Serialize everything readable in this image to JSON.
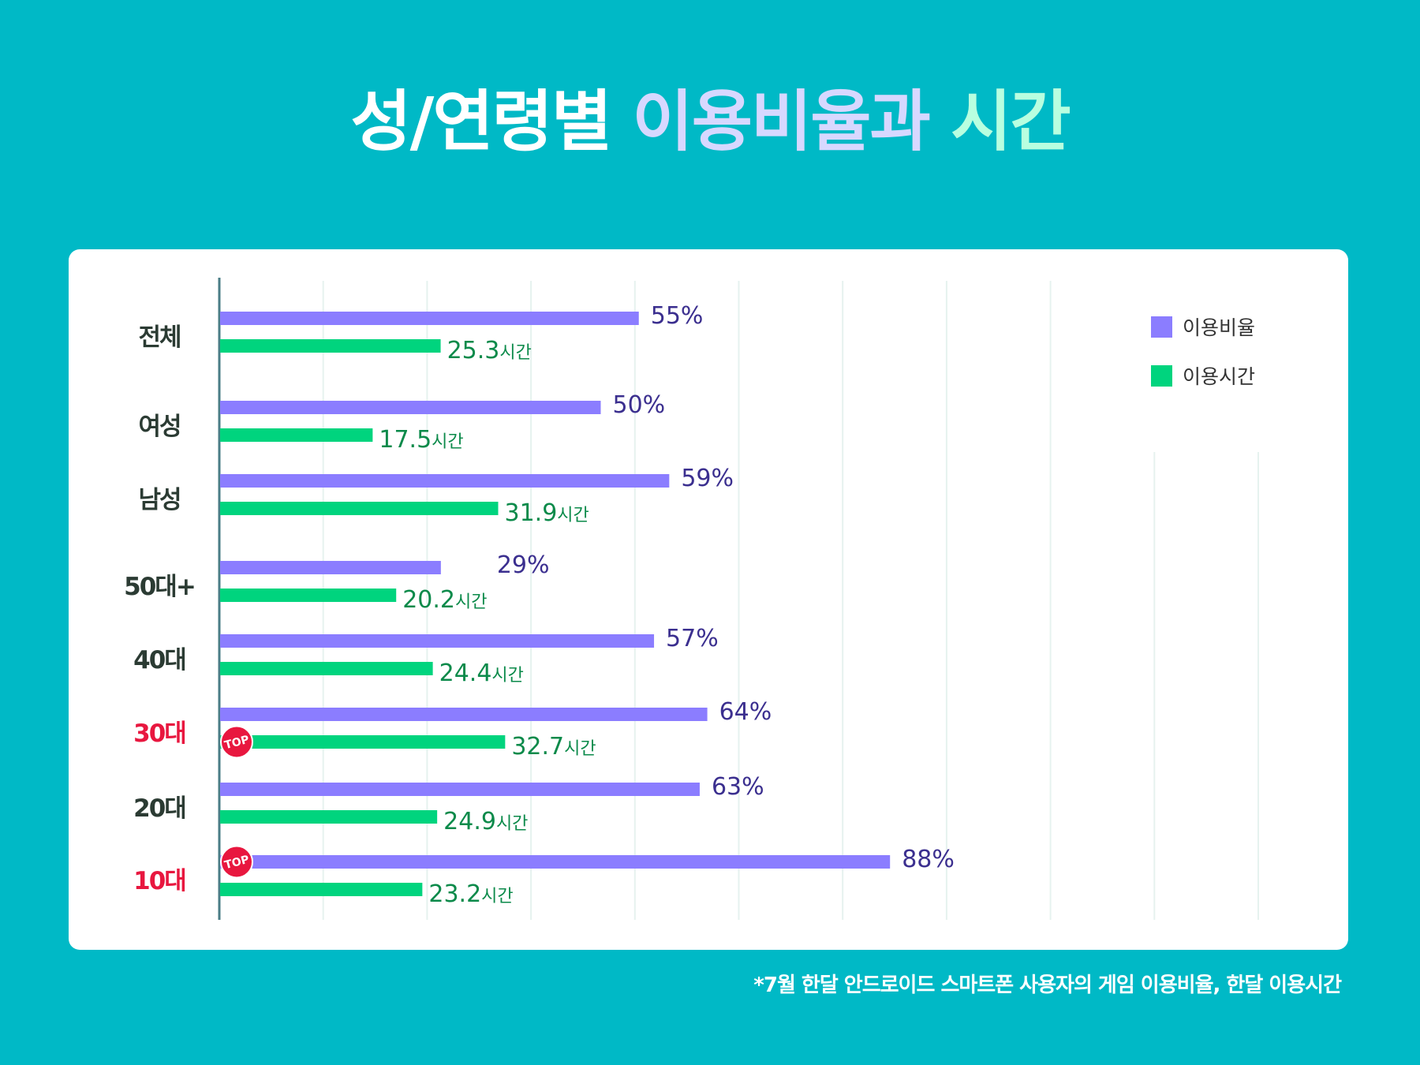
{
  "title": {
    "prefix": "성/연령별",
    "ratio_word": "이용비율과",
    "time_word": "시간"
  },
  "footnote": "*7월 한달 안드로이드 스마트폰 사용자의 게임 이용비율, 한달 이용시간",
  "colors": {
    "background": "#00b9c6",
    "ratio_bar": "#8b7dff",
    "time_bar": "#00d47e",
    "highlight_label": "#e8173f",
    "normal_label": "#2b3b33",
    "badge": "#e8173f"
  },
  "chart_data": {
    "type": "bar",
    "orientation": "horizontal",
    "title": "성/연령별 이용비율과 시간",
    "categories": [
      "전체",
      "여성",
      "남성",
      "50대+",
      "40대",
      "30대",
      "20대",
      "10대"
    ],
    "series": [
      {
        "name": "이용비율",
        "values": [
          55,
          50,
          59,
          29,
          57,
          64,
          63,
          88
        ],
        "labels": [
          "55%",
          "50%",
          "59%",
          "29%",
          "57%",
          "64%",
          "63%",
          "88%"
        ]
      },
      {
        "name": "이용시간",
        "values": [
          25.3,
          17.5,
          31.9,
          20.2,
          24.4,
          32.7,
          24.9,
          23.2
        ],
        "labels": [
          "25.3",
          "17.5",
          "31.9",
          "20.2",
          "24.4",
          "32.7",
          "24.9",
          "23.2"
        ],
        "unit": "시간"
      }
    ],
    "highlighted_categories": [
      "30대",
      "10대"
    ],
    "top_badges": [
      {
        "category": "30대",
        "series": "이용시간",
        "text": "TOP"
      },
      {
        "category": "10대",
        "series": "이용비율",
        "text": "TOP"
      }
    ],
    "legend": [
      "이용비율",
      "이용시간"
    ],
    "legend_position": "top-right",
    "grid": true
  }
}
